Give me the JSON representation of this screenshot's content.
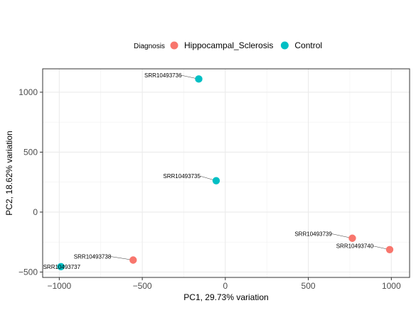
{
  "chart_data": {
    "type": "scatter",
    "xlabel": "PC1, 29.73% variation",
    "ylabel": "PC2, 18.62% variation",
    "xlim": [
      -1100,
      1110
    ],
    "ylim": [
      -545,
      1195
    ],
    "x_ticks": [
      -1000,
      -500,
      0,
      500,
      1000
    ],
    "y_ticks": [
      -500,
      0,
      500,
      1000
    ],
    "x_tick_labels": [
      "−1000",
      "−500",
      "0",
      "500",
      "1000"
    ],
    "y_tick_labels": [
      "−500",
      "0",
      "500",
      "1000"
    ],
    "grid": true,
    "legend": {
      "title": "Diagnosis",
      "position": "top",
      "entries": [
        {
          "label": "Hippocampal_Sclerosis",
          "color": "#F8766D"
        },
        {
          "label": "Control",
          "color": "#00BFC4"
        }
      ]
    },
    "points": [
      {
        "label": "SRR10493736",
        "x": -160,
        "y": 1110,
        "group": "Control",
        "label_x": -375,
        "label_y": 1142
      },
      {
        "label": "SRR10493735",
        "x": -55,
        "y": 262,
        "group": "Control",
        "label_x": -262,
        "label_y": 302
      },
      {
        "label": "SRR10493739",
        "x": 765,
        "y": -218,
        "group": "Hippocampal_Sclerosis",
        "label_x": 530,
        "label_y": -180
      },
      {
        "label": "SRR10493740",
        "x": 990,
        "y": -313,
        "group": "Hippocampal_Sclerosis",
        "label_x": 780,
        "label_y": -282
      },
      {
        "label": "SRR10493738",
        "x": -555,
        "y": -400,
        "group": "Hippocampal_Sclerosis",
        "label_x": -800,
        "label_y": -370
      },
      {
        "label": "SRR10493737",
        "x": -990,
        "y": -455,
        "group": "Control",
        "label_x": -985,
        "label_y": -455
      }
    ]
  }
}
